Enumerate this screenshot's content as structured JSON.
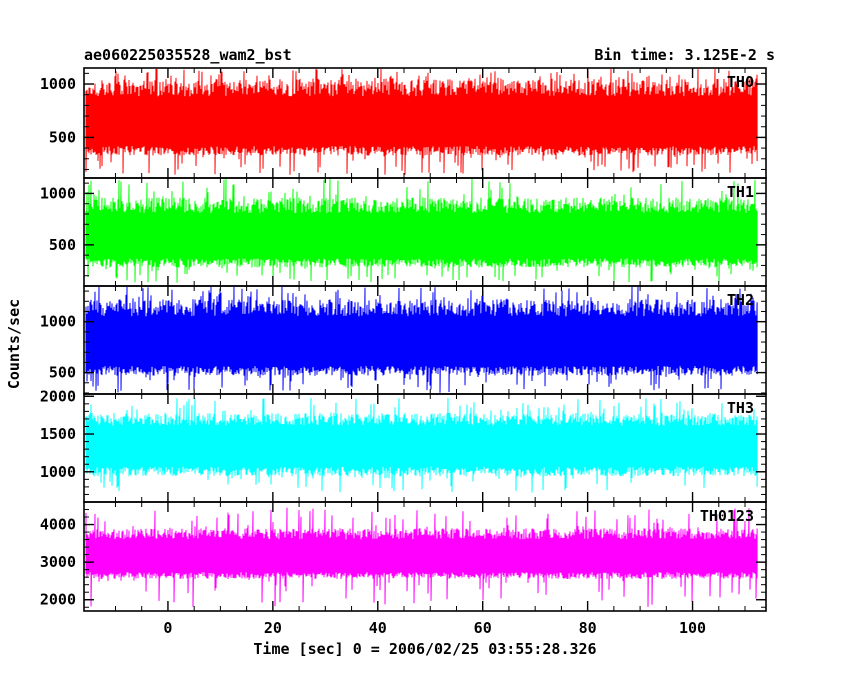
{
  "chart_data": {
    "type": "line",
    "title": "ae060225035528_wam2_bst",
    "subtitle": "Bin time: 3.125E-2 s",
    "xlabel": "Time [sec] 0 = 2006/02/25 03:55:28.326",
    "ylabel": "Counts/sec",
    "x_range": [
      -16,
      114
    ],
    "x_data_range": [
      -15.6,
      112.3
    ],
    "x_ticks": [
      0,
      20,
      40,
      60,
      80,
      100
    ],
    "x_tick_labels": [
      "0",
      "20",
      "40",
      "60",
      "80",
      "100"
    ],
    "grid": false,
    "panels": [
      {
        "name": "TH0",
        "color": "#ff0000",
        "ylim": [
          120,
          1150
        ],
        "y_ticks": [
          500,
          1000
        ],
        "y_tick_labels": [
          "500",
          "1000"
        ],
        "mean": 580,
        "noise_low": 330,
        "noise_high": 1050,
        "spike_max": 1150,
        "spike_min": 150
      },
      {
        "name": "TH1",
        "color": "#00ff00",
        "ylim": [
          100,
          1150
        ],
        "y_ticks": [
          500,
          1000
        ],
        "y_tick_labels": [
          "500",
          "1000"
        ],
        "mean": 530,
        "noise_low": 280,
        "noise_high": 960,
        "spike_max": 1150,
        "spike_min": 130
      },
      {
        "name": "TH2",
        "color": "#0000ff",
        "ylim": [
          290,
          1350
        ],
        "y_ticks": [
          500,
          1000
        ],
        "y_tick_labels": [
          "500",
          "1000"
        ],
        "mean": 740,
        "noise_low": 470,
        "noise_high": 1220,
        "spike_max": 1350,
        "spike_min": 300
      },
      {
        "name": "TH3",
        "color": "#00ffff",
        "ylim": [
          600,
          2030
        ],
        "y_ticks": [
          1000,
          1500,
          2000
        ],
        "y_tick_labels": [
          "1000",
          "1500",
          "2000"
        ],
        "mean": 1300,
        "noise_low": 940,
        "noise_high": 1780,
        "spike_max": 1980,
        "spike_min": 720
      },
      {
        "name": "TH0123",
        "color": "#ff00ff",
        "ylim": [
          1700,
          4600
        ],
        "y_ticks": [
          2000,
          3000,
          4000
        ],
        "y_tick_labels": [
          "2000",
          "3000",
          "4000"
        ],
        "mean": 3070,
        "noise_low": 2550,
        "noise_high": 3900,
        "spike_max": 4450,
        "spike_min": 1780
      }
    ]
  }
}
